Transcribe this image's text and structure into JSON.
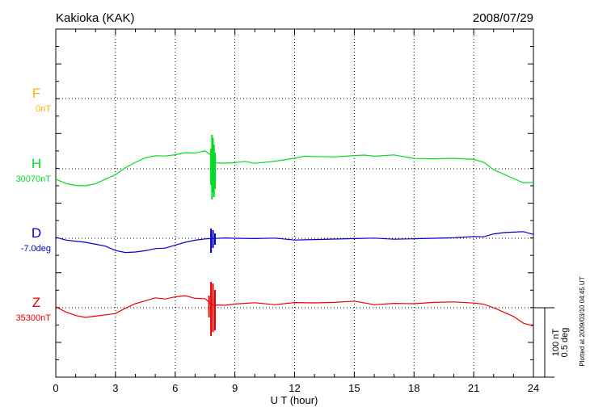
{
  "chart_data": {
    "type": "line",
    "station": "Kakioka (KAK)",
    "date": "2008/07/29",
    "xlabel": "U T (hour)",
    "xlim": [
      0,
      24
    ],
    "xticks": [
      "0",
      "3",
      "6",
      "9",
      "12",
      "15",
      "18",
      "21",
      "24"
    ],
    "grid": true,
    "scale_labels": [
      "100 nT",
      "0.5 deg"
    ],
    "plotted_note": "Plotted at 2009/03/10 04:45 UT",
    "series": [
      {
        "name": "F",
        "baseline": "0nT",
        "color": "#ffb000",
        "x": [],
        "y": []
      },
      {
        "name": "H",
        "baseline": "30070nT",
        "color": "#00dd22",
        "x": [
          0,
          0.5,
          1,
          1.5,
          2,
          2.5,
          3,
          3.5,
          4,
          4.5,
          5,
          5.5,
          6,
          6.5,
          7,
          7.5,
          7.8,
          8,
          8.5,
          9,
          9.5,
          10,
          11,
          12,
          12.5,
          13,
          14,
          15,
          15.5,
          16,
          17,
          18,
          19,
          20,
          21,
          21.5,
          22,
          22.5,
          23,
          23.5,
          24
        ],
        "y": [
          -14,
          -17,
          -20,
          -21,
          -19,
          -14,
          -6,
          2,
          8,
          13,
          15,
          17,
          18,
          20,
          19,
          21,
          18,
          8,
          7,
          7,
          8,
          8,
          10,
          13,
          15,
          14,
          16,
          17,
          17,
          15,
          16,
          14,
          13,
          13,
          11,
          7,
          0,
          -6,
          -12,
          -18,
          -18
        ],
        "spikes": [
          [
            7.85,
            -38,
            42
          ],
          [
            7.9,
            -30,
            38
          ],
          [
            7.95,
            -35,
            30
          ],
          [
            8.0,
            -25,
            20
          ],
          [
            7.8,
            -20,
            25
          ]
        ]
      },
      {
        "name": "D",
        "baseline": "-7.0deg",
        "color": "#0000cc",
        "x": [
          0,
          0.5,
          1,
          1.5,
          2,
          2.5,
          3,
          3.5,
          4,
          4.5,
          5,
          5.5,
          6,
          6.5,
          7,
          7.5,
          8,
          8.5,
          9,
          10,
          11,
          12,
          13,
          14,
          15,
          16,
          17,
          18,
          19,
          20,
          21,
          21.5,
          22,
          22.5,
          23,
          23.5,
          24
        ],
        "y": [
          0,
          -1,
          -3,
          -5,
          -8,
          -11,
          -14,
          -17,
          -17,
          -16,
          -14,
          -11,
          -8,
          -5,
          -3,
          -2,
          1,
          1,
          0,
          -1,
          -1,
          -1,
          -1,
          -1,
          -1,
          -1,
          0,
          0,
          0,
          0,
          1,
          3,
          6,
          7,
          7,
          7,
          6
        ],
        "spikes": [
          [
            7.8,
            -18,
            12
          ],
          [
            7.9,
            -12,
            10
          ],
          [
            8.0,
            -8,
            6
          ]
        ]
      },
      {
        "name": "Z",
        "baseline": "35300nT",
        "color": "#ee0000",
        "x": [
          0,
          0.5,
          1,
          1.5,
          2,
          2.5,
          3,
          3.5,
          4,
          4.5,
          5,
          5.5,
          6,
          6.5,
          7,
          7.5,
          7.9,
          8.1,
          8.5,
          9,
          10,
          11,
          12,
          13,
          14,
          15,
          16,
          17,
          18,
          19,
          20,
          21,
          21.5,
          22,
          22.5,
          23,
          23.5,
          24
        ],
        "y": [
          0,
          -4,
          -9,
          -12,
          -11,
          -10,
          -6,
          0,
          5,
          8,
          11,
          12,
          14,
          15,
          11,
          10,
          4,
          4,
          3,
          4,
          5,
          5,
          7,
          6,
          6,
          7,
          5,
          6,
          5,
          6,
          6,
          7,
          5,
          0,
          -6,
          -12,
          -18,
          -22
        ],
        "spikes": [
          [
            7.8,
            -35,
            32
          ],
          [
            7.9,
            -30,
            30
          ],
          [
            8.0,
            -28,
            22
          ],
          [
            7.7,
            -12,
            15
          ]
        ]
      }
    ]
  }
}
